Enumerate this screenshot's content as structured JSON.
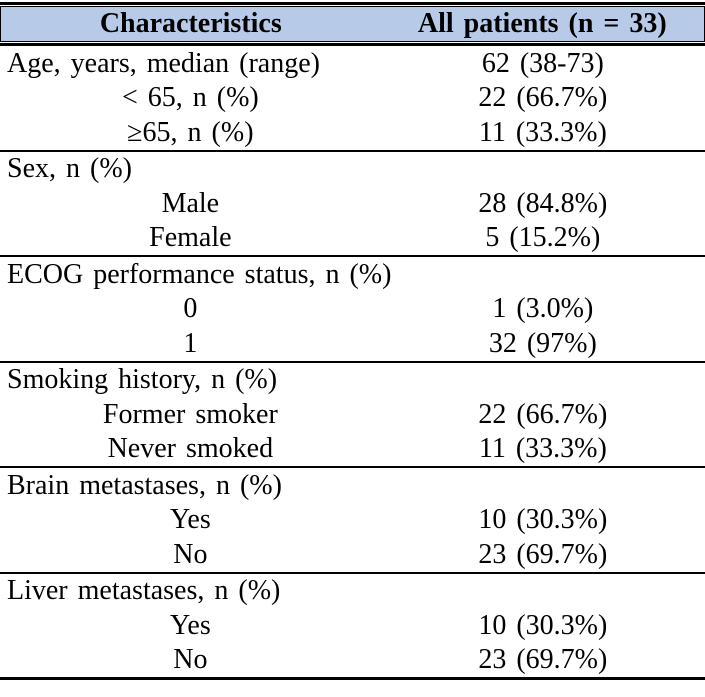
{
  "table": {
    "accent_color": "#b7cbe9",
    "rule_color": "#000000",
    "header": {
      "col1": "Characteristics",
      "col2": "All patients (n = 33)"
    },
    "sections": [
      {
        "rows": [
          {
            "label": "Age, years, median (range)",
            "value": "62 (38-73)"
          },
          {
            "label": "< 65, n (%)",
            "value": "22 (66.7%)"
          },
          {
            "label": "≥65, n (%)",
            "value": "11 (33.3%)"
          }
        ]
      },
      {
        "rows": [
          {
            "label": "Sex, n (%)",
            "value": ""
          },
          {
            "label": "Male",
            "value": "28 (84.8%)"
          },
          {
            "label": "Female",
            "value": "5 (15.2%)"
          }
        ]
      },
      {
        "rows": [
          {
            "label": "ECOG performance status, n (%)",
            "value": ""
          },
          {
            "label": "0",
            "value": "1 (3.0%)"
          },
          {
            "label": "1",
            "value": "32 (97%)"
          }
        ]
      },
      {
        "rows": [
          {
            "label": "Smoking history, n (%)",
            "value": ""
          },
          {
            "label": "Former smoker",
            "value": "22 (66.7%)"
          },
          {
            "label": "Never smoked",
            "value": "11 (33.3%)"
          }
        ]
      },
      {
        "rows": [
          {
            "label": "Brain metastases, n (%)",
            "value": ""
          },
          {
            "label": "Yes",
            "value": "10 (30.3%)"
          },
          {
            "label": "No",
            "value": "23 (69.7%)"
          }
        ]
      },
      {
        "rows": [
          {
            "label": "Liver metastases, n (%)",
            "value": ""
          },
          {
            "label": "Yes",
            "value": "10 (30.3%)"
          },
          {
            "label": "No",
            "value": "23 (69.7%)"
          }
        ]
      }
    ]
  }
}
